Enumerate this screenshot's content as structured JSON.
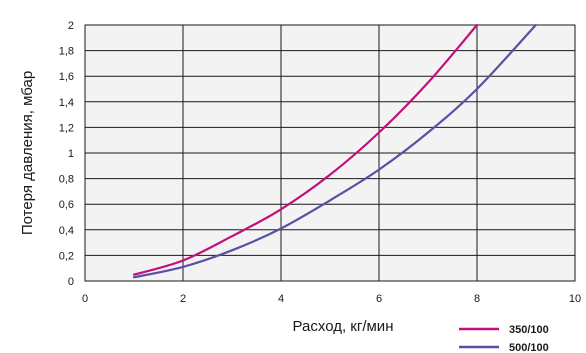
{
  "chart_data": {
    "type": "line",
    "title": "",
    "xlabel": "Расход, кг/мин",
    "ylabel": "Потеря давления, мбар",
    "xlim": [
      0,
      10
    ],
    "ylim": [
      0,
      2
    ],
    "x_ticks": [
      "0",
      "2",
      "4",
      "6",
      "8",
      "10"
    ],
    "y_ticks": [
      "0",
      "0,2",
      "0,4",
      "0,6",
      "0,8",
      "1",
      "1,2",
      "1,4",
      "1,6",
      "1,8",
      "2"
    ],
    "grid": true,
    "legend_position": "bottom-right",
    "series": [
      {
        "name": "350/100",
        "color": "#c0117a",
        "x": [
          1.0,
          2.0,
          3.0,
          4.0,
          5.0,
          6.0,
          7.0,
          8.0
        ],
        "y": [
          0.05,
          0.16,
          0.35,
          0.56,
          0.83,
          1.16,
          1.55,
          2.0
        ]
      },
      {
        "name": "500/100",
        "color": "#5a4fa3",
        "x": [
          1.0,
          2.0,
          3.0,
          4.0,
          5.0,
          6.0,
          7.0,
          8.0,
          9.2
        ],
        "y": [
          0.03,
          0.11,
          0.24,
          0.41,
          0.63,
          0.87,
          1.16,
          1.5,
          2.0
        ]
      }
    ]
  }
}
